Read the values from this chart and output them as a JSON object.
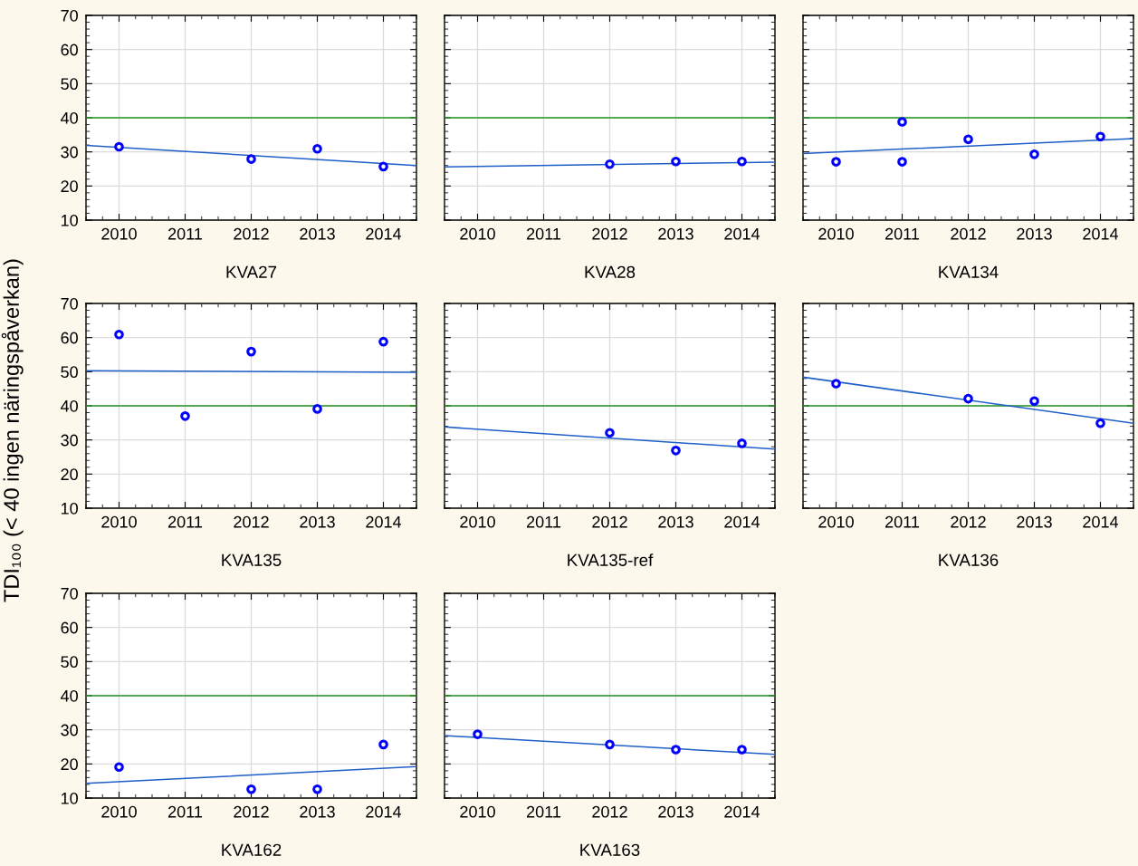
{
  "chart_data": [
    {
      "type": "scatter",
      "xlabel": "KVA27",
      "xlim": [
        2009.5,
        2014.5
      ],
      "xticks": [
        2010,
        2011,
        2012,
        2013,
        2014
      ],
      "ylim": [
        10,
        70
      ],
      "yticks": [
        10,
        20,
        30,
        40,
        50,
        60,
        70
      ],
      "grid": true,
      "ref_lines": [
        {
          "axis": "y",
          "value": 40,
          "color": "#229922"
        }
      ],
      "series": [
        {
          "marker": "circle",
          "color": "#0000ff",
          "x": [
            2010,
            2012,
            2013,
            2014
          ],
          "values": [
            31.5,
            27.9,
            30.9,
            25.7
          ]
        },
        {
          "type": "line",
          "color": "#1f5fc8",
          "x": [
            2009.5,
            2014.5
          ],
          "values": [
            31.9,
            26.0
          ]
        }
      ]
    },
    {
      "type": "scatter",
      "xlabel": "KVA28",
      "xlim": [
        2009.5,
        2014.5
      ],
      "xticks": [
        2010,
        2011,
        2012,
        2013,
        2014
      ],
      "ylim": [
        10,
        70
      ],
      "yticks": [
        10,
        20,
        30,
        40,
        50,
        60,
        70
      ],
      "tick_labels": "x",
      "grid": true,
      "ref_lines": [
        {
          "axis": "y",
          "value": 40,
          "color": "#229922"
        }
      ],
      "series": [
        {
          "marker": "circle",
          "color": "#0000ff",
          "x": [
            2012,
            2013,
            2014
          ],
          "values": [
            26.4,
            27.2,
            27.2
          ]
        },
        {
          "type": "line",
          "color": "#1f5fc8",
          "x": [
            2009.5,
            2014.5
          ],
          "values": [
            25.6,
            27.0
          ]
        }
      ]
    },
    {
      "type": "scatter",
      "xlabel": "KVA134",
      "xlim": [
        2009.5,
        2014.5
      ],
      "xticks": [
        2010,
        2011,
        2012,
        2013,
        2014
      ],
      "ylim": [
        10,
        70
      ],
      "yticks": [
        10,
        20,
        30,
        40,
        50,
        60,
        70
      ],
      "tick_labels": "x",
      "grid": true,
      "ref_lines": [
        {
          "axis": "y",
          "value": 40,
          "color": "#229922"
        }
      ],
      "series": [
        {
          "marker": "circle",
          "color": "#0000ff",
          "x": [
            2010,
            2011,
            2011,
            2012,
            2013,
            2014
          ],
          "values": [
            27.1,
            38.8,
            27.1,
            33.7,
            29.3,
            34.5
          ]
        },
        {
          "type": "line",
          "color": "#1f5fc8",
          "x": [
            2009.5,
            2014.5
          ],
          "values": [
            29.5,
            33.9
          ]
        }
      ]
    },
    {
      "type": "scatter",
      "xlabel": "KVA135",
      "ylabel": "TDI₁₀₀ (< 40 ingen näringspåverkan)",
      "xlim": [
        2009.5,
        2014.5
      ],
      "xticks": [
        2010,
        2011,
        2012,
        2013,
        2014
      ],
      "ylim": [
        10,
        70
      ],
      "yticks": [
        10,
        20,
        30,
        40,
        50,
        60,
        70
      ],
      "grid": true,
      "ref_lines": [
        {
          "axis": "y",
          "value": 40,
          "color": "#229922"
        }
      ],
      "series": [
        {
          "marker": "circle",
          "color": "#0000ff",
          "x": [
            2010,
            2011,
            2012,
            2013,
            2014
          ],
          "values": [
            60.9,
            37.0,
            55.9,
            39.1,
            58.8
          ]
        },
        {
          "type": "line",
          "color": "#1f5fc8",
          "x": [
            2009.5,
            2014.5
          ],
          "values": [
            50.3,
            49.8
          ]
        }
      ]
    },
    {
      "type": "scatter",
      "xlabel": "KVA135-ref",
      "xlim": [
        2009.5,
        2014.5
      ],
      "xticks": [
        2010,
        2011,
        2012,
        2013,
        2014
      ],
      "ylim": [
        10,
        70
      ],
      "yticks": [
        10,
        20,
        30,
        40,
        50,
        60,
        70
      ],
      "tick_labels": "x",
      "grid": true,
      "ref_lines": [
        {
          "axis": "y",
          "value": 40,
          "color": "#229922"
        }
      ],
      "series": [
        {
          "marker": "circle",
          "color": "#0000ff",
          "x": [
            2012,
            2013,
            2014
          ],
          "values": [
            32.1,
            26.9,
            29.0
          ]
        },
        {
          "type": "line",
          "color": "#1f5fc8",
          "x": [
            2009.5,
            2014.5
          ],
          "values": [
            33.8,
            27.3
          ]
        }
      ]
    },
    {
      "type": "scatter",
      "xlabel": "KVA136",
      "xlim": [
        2009.5,
        2014.5
      ],
      "xticks": [
        2010,
        2011,
        2012,
        2013,
        2014
      ],
      "ylim": [
        10,
        70
      ],
      "yticks": [
        10,
        20,
        30,
        40,
        50,
        60,
        70
      ],
      "tick_labels": "x",
      "grid": true,
      "ref_lines": [
        {
          "axis": "y",
          "value": 40,
          "color": "#229922"
        }
      ],
      "series": [
        {
          "marker": "circle",
          "color": "#0000ff",
          "x": [
            2010,
            2012,
            2013,
            2014
          ],
          "values": [
            46.5,
            42.1,
            41.4,
            34.9
          ]
        },
        {
          "type": "line",
          "color": "#1f5fc8",
          "x": [
            2009.5,
            2014.5
          ],
          "values": [
            48.4,
            34.9
          ]
        }
      ]
    },
    {
      "type": "scatter",
      "xlabel": "KVA162",
      "xlim": [
        2009.5,
        2014.5
      ],
      "xticks": [
        2010,
        2011,
        2012,
        2013,
        2014
      ],
      "ylim": [
        10,
        70
      ],
      "yticks": [
        10,
        20,
        30,
        40,
        50,
        60,
        70
      ],
      "grid": true,
      "ref_lines": [
        {
          "axis": "y",
          "value": 40,
          "color": "#229922"
        }
      ],
      "series": [
        {
          "marker": "circle",
          "color": "#0000ff",
          "x": [
            2010,
            2012,
            2013,
            2014
          ],
          "values": [
            19.1,
            12.6,
            12.6,
            25.7
          ]
        },
        {
          "type": "line",
          "color": "#1f5fc8",
          "x": [
            2009.5,
            2014.5
          ],
          "values": [
            14.3,
            19.2
          ]
        }
      ]
    },
    {
      "type": "scatter",
      "xlabel": "KVA163",
      "xlim": [
        2009.5,
        2014.5
      ],
      "xticks": [
        2010,
        2011,
        2012,
        2013,
        2014
      ],
      "ylim": [
        10,
        70
      ],
      "yticks": [
        10,
        20,
        30,
        40,
        50,
        60,
        70
      ],
      "tick_labels": "x",
      "grid": true,
      "ref_lines": [
        {
          "axis": "y",
          "value": 40,
          "color": "#229922"
        }
      ],
      "series": [
        {
          "marker": "circle",
          "color": "#0000ff",
          "x": [
            2010,
            2012,
            2013,
            2014
          ],
          "values": [
            28.7,
            25.7,
            24.2,
            24.2
          ]
        },
        {
          "type": "line",
          "color": "#1f5fc8",
          "x": [
            2009.5,
            2014.5
          ],
          "values": [
            28.3,
            22.8
          ]
        }
      ]
    }
  ]
}
